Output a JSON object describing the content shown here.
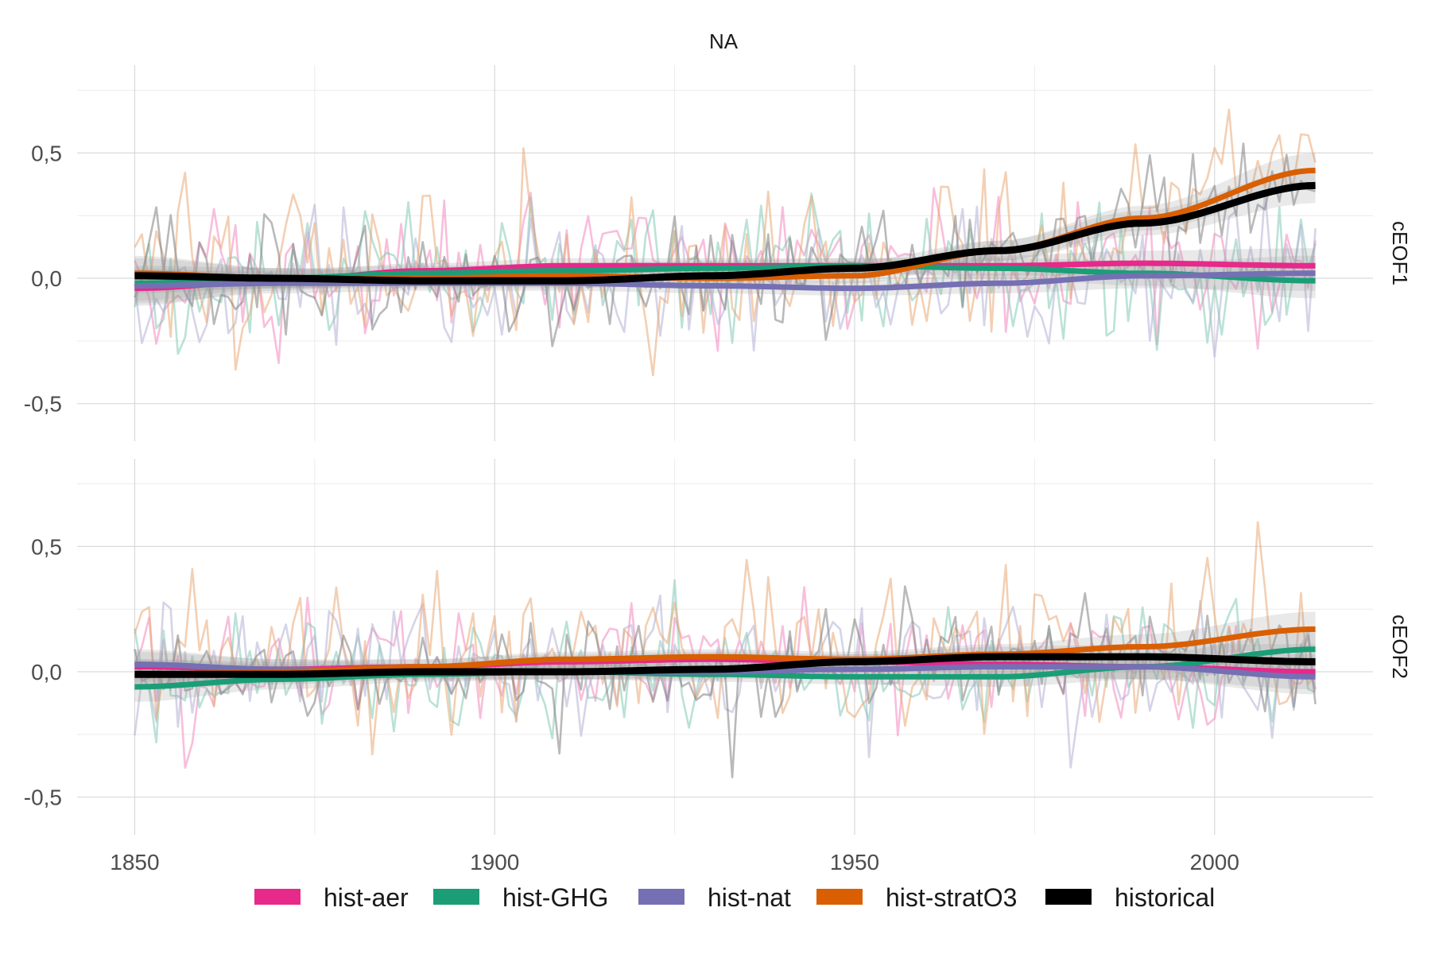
{
  "chart_data": {
    "type": "line",
    "title": "NA",
    "xlabel": "",
    "ylabel": "",
    "xlim": [
      1842,
      2022
    ],
    "ylim": [
      -0.65,
      0.85
    ],
    "x_ticks": [
      1850,
      1900,
      1950,
      2000
    ],
    "x_tick_labels": [
      "1850",
      "1900",
      "1950",
      "2000"
    ],
    "y_ticks": [
      -0.5,
      0,
      0.5
    ],
    "y_tick_labels": [
      "-0,5",
      "0,0",
      "0,5"
    ],
    "grid": true,
    "legend_position": "bottom",
    "legend": [
      {
        "name": "hist-aer",
        "color": "#E7298A"
      },
      {
        "name": "hist-GHG",
        "color": "#1B9E77"
      },
      {
        "name": "hist-nat",
        "color": "#7570B3"
      },
      {
        "name": "hist-stratO3",
        "color": "#D95F02"
      },
      {
        "name": "historical",
        "color": "#000000"
      }
    ],
    "panels": [
      {
        "label": "cEOF1",
        "smooth_x": [
          1850,
          1870,
          1890,
          1910,
          1930,
          1950,
          1970,
          1990,
          2014
        ],
        "series": [
          {
            "name": "hist-aer",
            "color": "#E7298A",
            "values": [
              -0.04,
              -0.01,
              0.03,
              0.05,
              0.05,
              0.05,
              0.05,
              0.06,
              0.05
            ]
          },
          {
            "name": "hist-GHG",
            "color": "#1B9E77",
            "values": [
              -0.02,
              0.0,
              0.02,
              0.03,
              0.04,
              0.05,
              0.04,
              0.02,
              -0.01
            ]
          },
          {
            "name": "hist-nat",
            "color": "#7570B3",
            "values": [
              -0.03,
              -0.02,
              -0.02,
              -0.02,
              -0.03,
              -0.04,
              -0.02,
              0.01,
              0.02
            ]
          },
          {
            "name": "hist-stratO3",
            "color": "#D95F02",
            "values": [
              0.02,
              0.0,
              0.0,
              0.01,
              0.0,
              0.01,
              0.11,
              0.24,
              0.43
            ]
          },
          {
            "name": "historical",
            "color": "#000000",
            "values": [
              0.01,
              0.0,
              -0.01,
              -0.01,
              0.01,
              0.04,
              0.11,
              0.22,
              0.37
            ]
          }
        ],
        "historical_band_halfwidth": [
          0.07,
          0.04,
          0.03,
          0.03,
          0.03,
          0.03,
          0.04,
          0.05,
          0.07
        ]
      },
      {
        "label": "cEOF2",
        "smooth_x": [
          1850,
          1870,
          1890,
          1910,
          1930,
          1950,
          1970,
          1990,
          2014
        ],
        "series": [
          {
            "name": "hist-aer",
            "color": "#E7298A",
            "values": [
              0.02,
              0.01,
              0.02,
              0.04,
              0.05,
              0.04,
              0.03,
              0.02,
              0.0
            ]
          },
          {
            "name": "hist-GHG",
            "color": "#1B9E77",
            "values": [
              -0.06,
              -0.03,
              -0.01,
              0.0,
              -0.01,
              -0.02,
              -0.02,
              0.02,
              0.09
            ]
          },
          {
            "name": "hist-nat",
            "color": "#7570B3",
            "values": [
              0.03,
              0.01,
              0.0,
              0.0,
              0.0,
              0.01,
              0.02,
              0.02,
              -0.02
            ]
          },
          {
            "name": "hist-stratO3",
            "color": "#D95F02",
            "values": [
              -0.01,
              0.0,
              0.02,
              0.05,
              0.06,
              0.05,
              0.07,
              0.1,
              0.17
            ]
          },
          {
            "name": "historical",
            "color": "#000000",
            "values": [
              -0.01,
              -0.01,
              0.0,
              0.0,
              0.01,
              0.04,
              0.06,
              0.06,
              0.04
            ]
          }
        ],
        "historical_band_halfwidth": [
          0.06,
          0.04,
          0.03,
          0.03,
          0.03,
          0.03,
          0.04,
          0.05,
          0.07
        ]
      }
    ]
  }
}
